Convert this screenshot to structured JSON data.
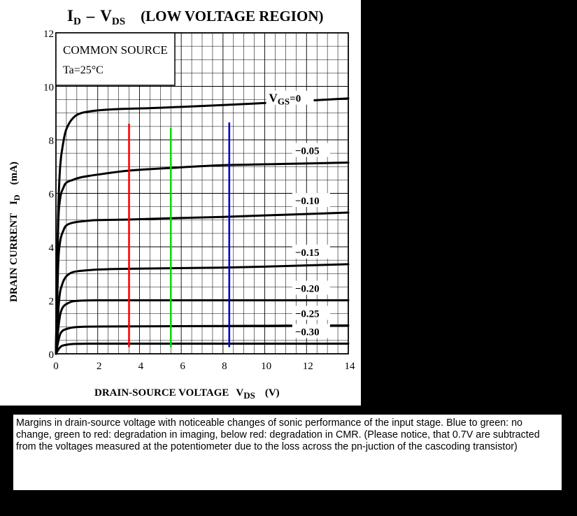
{
  "figure": {
    "title_main": "I",
    "title_main_sub": "D",
    "title_dash": "–",
    "title_v": "V",
    "title_v_sub": "DS",
    "title_region": "(LOW VOLTAGE REGION)",
    "annotation_line1": "COMMON SOURCE",
    "annotation_line2": "Ta=25°C"
  },
  "chart_data": {
    "type": "line",
    "xlabel_main": "DRAIN-SOURCE VOLTAGE",
    "xlabel_symbol": "V",
    "xlabel_symbol_sub": "DS",
    "xlabel_unit": "(V)",
    "ylabel_main": "DRAIN CURRENT",
    "ylabel_symbol": "I",
    "ylabel_symbol_sub": "D",
    "ylabel_unit": "(mA)",
    "xlim": [
      0,
      14
    ],
    "ylim": [
      0,
      12
    ],
    "x_ticks": [
      "0",
      "2",
      "4",
      "6",
      "8",
      "10",
      "12",
      "14"
    ],
    "y_ticks": [
      "0",
      "2",
      "4",
      "6",
      "8",
      "10",
      "12"
    ],
    "grid": true,
    "series": [
      {
        "name": "VGS=0",
        "label_prefix": "V",
        "label_sub": "GS",
        "label_suffix": "=0",
        "x": [
          0,
          0.1,
          0.2,
          0.35,
          0.5,
          0.8,
          1.2,
          2,
          3,
          5,
          8,
          11,
          14
        ],
        "y": [
          0,
          5.0,
          7.0,
          7.9,
          8.4,
          8.8,
          9.0,
          9.1,
          9.15,
          9.2,
          9.3,
          9.42,
          9.55
        ]
      },
      {
        "name": "-0.05",
        "label": "−0.05",
        "x": [
          0,
          0.1,
          0.2,
          0.35,
          0.5,
          0.8,
          1.2,
          2,
          3.5,
          5.5,
          8,
          11,
          14
        ],
        "y": [
          0,
          4.6,
          5.8,
          6.2,
          6.4,
          6.5,
          6.6,
          6.7,
          6.85,
          6.95,
          7.05,
          7.1,
          7.15
        ]
      },
      {
        "name": "-0.10",
        "label": "−0.10",
        "x": [
          0,
          0.1,
          0.2,
          0.35,
          0.5,
          0.8,
          1.2,
          2,
          3.5,
          5.5,
          8,
          11,
          14
        ],
        "y": [
          0,
          3.2,
          4.2,
          4.6,
          4.8,
          4.9,
          4.95,
          5.0,
          5.02,
          5.07,
          5.12,
          5.2,
          5.28
        ]
      },
      {
        "name": "-0.15",
        "label": "−0.15",
        "x": [
          0,
          0.15,
          0.3,
          0.5,
          0.8,
          1.2,
          2,
          3.5,
          5.5,
          8,
          11,
          14
        ],
        "y": [
          0,
          2.0,
          2.6,
          2.9,
          3.05,
          3.1,
          3.15,
          3.18,
          3.2,
          3.22,
          3.28,
          3.35
        ]
      },
      {
        "name": "-0.20",
        "label": "−0.20",
        "x": [
          0,
          0.15,
          0.3,
          0.6,
          1.0,
          2,
          5,
          8,
          11,
          14
        ],
        "y": [
          0,
          1.2,
          1.7,
          1.9,
          1.98,
          2.0,
          2.0,
          2.0,
          2.0,
          2.0
        ]
      },
      {
        "name": "-0.25",
        "label": "−0.25",
        "x": [
          0,
          0.15,
          0.3,
          0.6,
          1.0,
          2,
          5,
          8,
          11,
          14
        ],
        "y": [
          0,
          0.6,
          0.85,
          0.95,
          1.0,
          1.02,
          1.03,
          1.04,
          1.05,
          1.06
        ]
      },
      {
        "name": "-0.30",
        "label": "−0.30",
        "x": [
          0,
          0.15,
          0.3,
          0.6,
          1.0,
          2,
          5,
          8,
          11,
          14
        ],
        "y": [
          0,
          0.2,
          0.3,
          0.35,
          0.37,
          0.38,
          0.38,
          0.38,
          0.38,
          0.38
        ]
      }
    ],
    "markers": [
      {
        "color": "#ff0000",
        "x": 3.5,
        "y_top": 8.6
      },
      {
        "color": "#00dd00",
        "x": 5.5,
        "y_top": 8.45
      },
      {
        "color": "#0000cc",
        "x": 8.3,
        "y_top": 8.65
      }
    ]
  },
  "caption": "Margins in drain-source voltage with noticeable changes of sonic performance of the input stage. Blue to green: no change, green to red: degradation in imaging, below red: degradation in CMR. (Please notice, that 0.7V are subtracted from the voltages measured at the potentiometer due to the loss across the pn-juction of the cascoding transistor)"
}
